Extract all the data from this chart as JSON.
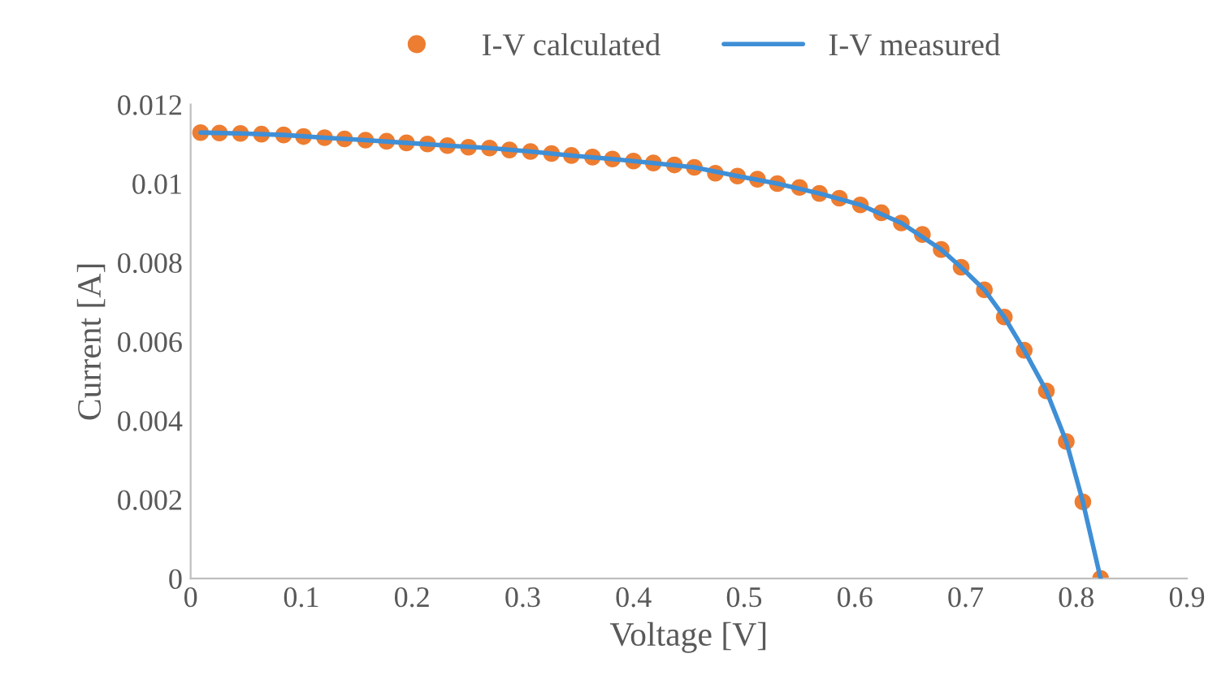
{
  "chart_data": {
    "type": "scatter",
    "xlabel": "Voltage [V]",
    "ylabel": "Current [A]",
    "xlim": [
      0,
      0.9
    ],
    "xticks": [
      0,
      0.1,
      0.2,
      0.3,
      0.4,
      0.5,
      0.6,
      0.7,
      0.8,
      0.9
    ],
    "ylim": [
      0,
      0.012
    ],
    "yticks": [
      0,
      0.002,
      0.004,
      0.006,
      0.008,
      0.01,
      0.012
    ],
    "grid": false,
    "legend": "top",
    "series": [
      {
        "name": "I-V calculated",
        "marker": "circle",
        "color": "#ed7d31",
        "x": [
          0.009,
          0.026,
          0.045,
          0.064,
          0.084,
          0.102,
          0.121,
          0.139,
          0.158,
          0.177,
          0.195,
          0.214,
          0.232,
          0.251,
          0.27,
          0.288,
          0.307,
          0.326,
          0.344,
          0.363,
          0.381,
          0.4,
          0.418,
          0.437,
          0.455,
          0.474,
          0.494,
          0.512,
          0.53,
          0.55,
          0.568,
          0.586,
          0.605,
          0.624,
          0.642,
          0.661,
          0.678,
          0.696,
          0.717,
          0.735,
          0.753,
          0.773,
          0.791,
          0.806,
          0.822
        ],
        "values": [
          0.01129,
          0.01128,
          0.01127,
          0.01125,
          0.01123,
          0.01119,
          0.01116,
          0.01113,
          0.0111,
          0.01107,
          0.01103,
          0.011,
          0.01096,
          0.01092,
          0.0109,
          0.01085,
          0.01081,
          0.01076,
          0.01071,
          0.01067,
          0.01062,
          0.01057,
          0.01052,
          0.01047,
          0.01041,
          0.01026,
          0.01019,
          0.01011,
          0.01,
          0.0099,
          0.00975,
          0.00963,
          0.00946,
          0.00926,
          0.009,
          0.00871,
          0.00833,
          0.00788,
          0.00731,
          0.00662,
          0.00578,
          0.00475,
          0.00347,
          0.00194,
          0.0
        ]
      },
      {
        "name": "I-V measured",
        "type": "line",
        "line_style": "solid",
        "marker": "none",
        "color": "#3f8fd6",
        "x": [
          0.009,
          0.045,
          0.084,
          0.121,
          0.158,
          0.195,
          0.232,
          0.27,
          0.307,
          0.344,
          0.381,
          0.418,
          0.455,
          0.494,
          0.53,
          0.568,
          0.605,
          0.642,
          0.678,
          0.696,
          0.717,
          0.735,
          0.753,
          0.773,
          0.791,
          0.806,
          0.822
        ],
        "values": [
          0.01129,
          0.01127,
          0.01123,
          0.01116,
          0.0111,
          0.01103,
          0.01096,
          0.0109,
          0.01081,
          0.01071,
          0.01062,
          0.01052,
          0.01041,
          0.01019,
          0.01,
          0.00975,
          0.00946,
          0.009,
          0.00833,
          0.00788,
          0.00731,
          0.00662,
          0.00578,
          0.00475,
          0.00347,
          0.00194,
          0.0
        ]
      }
    ]
  }
}
